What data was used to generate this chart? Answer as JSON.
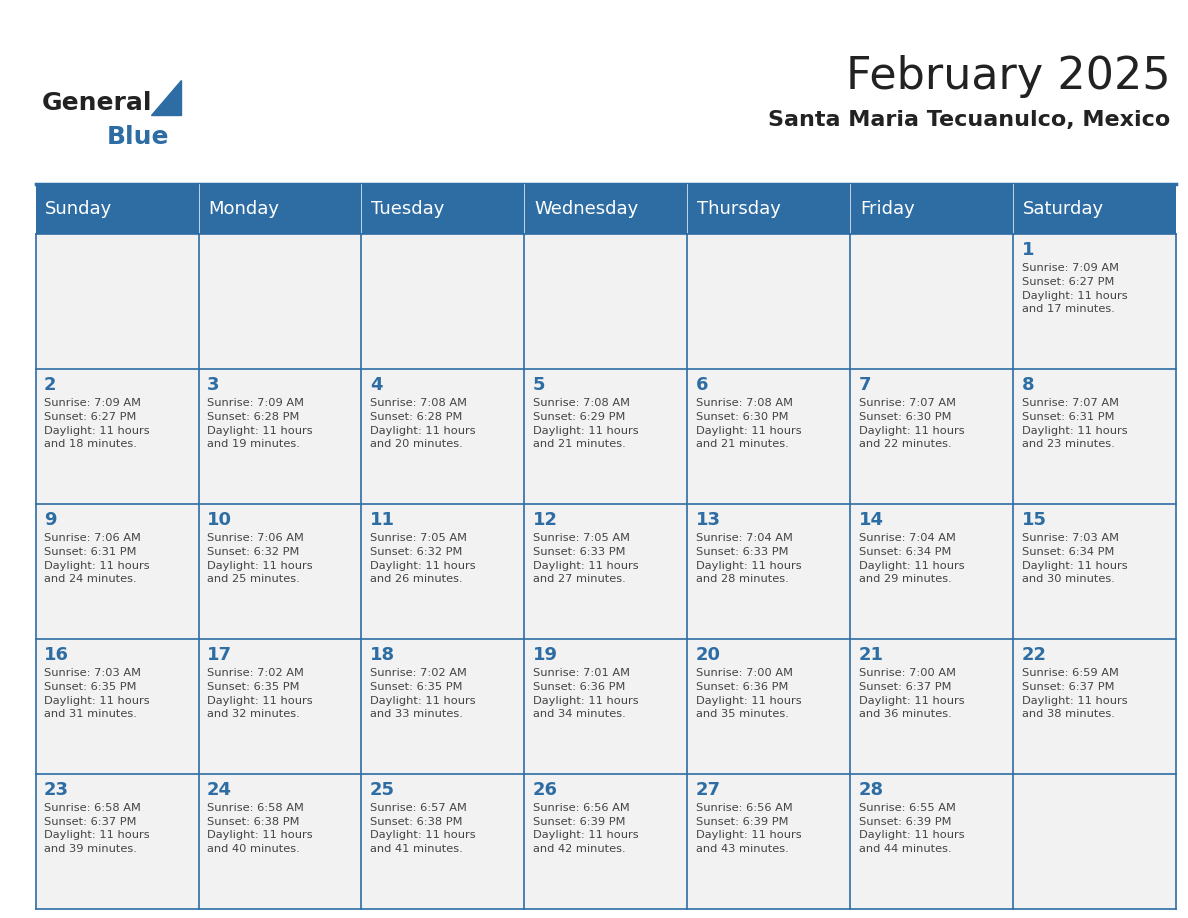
{
  "title": "February 2025",
  "subtitle": "Santa Maria Tecuanulco, Mexico",
  "days_of_week": [
    "Sunday",
    "Monday",
    "Tuesday",
    "Wednesday",
    "Thursday",
    "Friday",
    "Saturday"
  ],
  "header_bg": "#2E6DA4",
  "header_text": "#FFFFFF",
  "cell_bg": "#F2F2F2",
  "border_color": "#2E6DA4",
  "title_color": "#222222",
  "subtitle_color": "#222222",
  "day_number_color": "#2E6DA4",
  "cell_text_color": "#444444",
  "logo_general_color": "#222222",
  "logo_blue_color": "#2E6DA4",
  "weeks": [
    [
      {
        "day": null,
        "info": ""
      },
      {
        "day": null,
        "info": ""
      },
      {
        "day": null,
        "info": ""
      },
      {
        "day": null,
        "info": ""
      },
      {
        "day": null,
        "info": ""
      },
      {
        "day": null,
        "info": ""
      },
      {
        "day": 1,
        "info": "Sunrise: 7:09 AM\nSunset: 6:27 PM\nDaylight: 11 hours\nand 17 minutes."
      }
    ],
    [
      {
        "day": 2,
        "info": "Sunrise: 7:09 AM\nSunset: 6:27 PM\nDaylight: 11 hours\nand 18 minutes."
      },
      {
        "day": 3,
        "info": "Sunrise: 7:09 AM\nSunset: 6:28 PM\nDaylight: 11 hours\nand 19 minutes."
      },
      {
        "day": 4,
        "info": "Sunrise: 7:08 AM\nSunset: 6:28 PM\nDaylight: 11 hours\nand 20 minutes."
      },
      {
        "day": 5,
        "info": "Sunrise: 7:08 AM\nSunset: 6:29 PM\nDaylight: 11 hours\nand 21 minutes."
      },
      {
        "day": 6,
        "info": "Sunrise: 7:08 AM\nSunset: 6:30 PM\nDaylight: 11 hours\nand 21 minutes."
      },
      {
        "day": 7,
        "info": "Sunrise: 7:07 AM\nSunset: 6:30 PM\nDaylight: 11 hours\nand 22 minutes."
      },
      {
        "day": 8,
        "info": "Sunrise: 7:07 AM\nSunset: 6:31 PM\nDaylight: 11 hours\nand 23 minutes."
      }
    ],
    [
      {
        "day": 9,
        "info": "Sunrise: 7:06 AM\nSunset: 6:31 PM\nDaylight: 11 hours\nand 24 minutes."
      },
      {
        "day": 10,
        "info": "Sunrise: 7:06 AM\nSunset: 6:32 PM\nDaylight: 11 hours\nand 25 minutes."
      },
      {
        "day": 11,
        "info": "Sunrise: 7:05 AM\nSunset: 6:32 PM\nDaylight: 11 hours\nand 26 minutes."
      },
      {
        "day": 12,
        "info": "Sunrise: 7:05 AM\nSunset: 6:33 PM\nDaylight: 11 hours\nand 27 minutes."
      },
      {
        "day": 13,
        "info": "Sunrise: 7:04 AM\nSunset: 6:33 PM\nDaylight: 11 hours\nand 28 minutes."
      },
      {
        "day": 14,
        "info": "Sunrise: 7:04 AM\nSunset: 6:34 PM\nDaylight: 11 hours\nand 29 minutes."
      },
      {
        "day": 15,
        "info": "Sunrise: 7:03 AM\nSunset: 6:34 PM\nDaylight: 11 hours\nand 30 minutes."
      }
    ],
    [
      {
        "day": 16,
        "info": "Sunrise: 7:03 AM\nSunset: 6:35 PM\nDaylight: 11 hours\nand 31 minutes."
      },
      {
        "day": 17,
        "info": "Sunrise: 7:02 AM\nSunset: 6:35 PM\nDaylight: 11 hours\nand 32 minutes."
      },
      {
        "day": 18,
        "info": "Sunrise: 7:02 AM\nSunset: 6:35 PM\nDaylight: 11 hours\nand 33 minutes."
      },
      {
        "day": 19,
        "info": "Sunrise: 7:01 AM\nSunset: 6:36 PM\nDaylight: 11 hours\nand 34 minutes."
      },
      {
        "day": 20,
        "info": "Sunrise: 7:00 AM\nSunset: 6:36 PM\nDaylight: 11 hours\nand 35 minutes."
      },
      {
        "day": 21,
        "info": "Sunrise: 7:00 AM\nSunset: 6:37 PM\nDaylight: 11 hours\nand 36 minutes."
      },
      {
        "day": 22,
        "info": "Sunrise: 6:59 AM\nSunset: 6:37 PM\nDaylight: 11 hours\nand 38 minutes."
      }
    ],
    [
      {
        "day": 23,
        "info": "Sunrise: 6:58 AM\nSunset: 6:37 PM\nDaylight: 11 hours\nand 39 minutes."
      },
      {
        "day": 24,
        "info": "Sunrise: 6:58 AM\nSunset: 6:38 PM\nDaylight: 11 hours\nand 40 minutes."
      },
      {
        "day": 25,
        "info": "Sunrise: 6:57 AM\nSunset: 6:38 PM\nDaylight: 11 hours\nand 41 minutes."
      },
      {
        "day": 26,
        "info": "Sunrise: 6:56 AM\nSunset: 6:39 PM\nDaylight: 11 hours\nand 42 minutes."
      },
      {
        "day": 27,
        "info": "Sunrise: 6:56 AM\nSunset: 6:39 PM\nDaylight: 11 hours\nand 43 minutes."
      },
      {
        "day": 28,
        "info": "Sunrise: 6:55 AM\nSunset: 6:39 PM\nDaylight: 11 hours\nand 44 minutes."
      },
      {
        "day": null,
        "info": ""
      }
    ]
  ]
}
